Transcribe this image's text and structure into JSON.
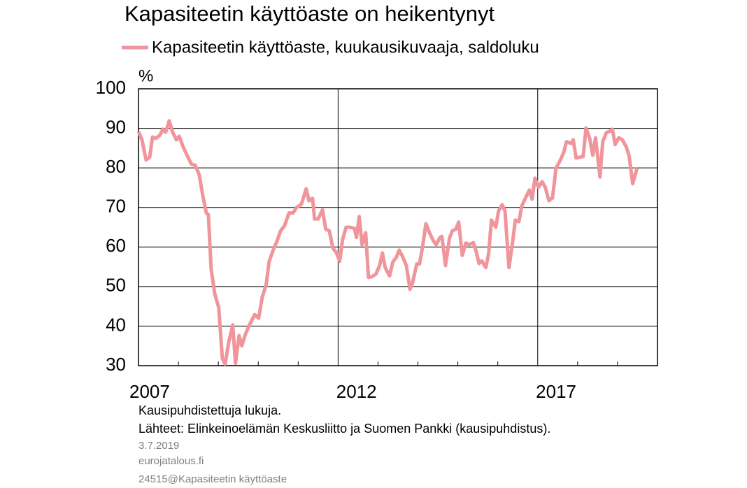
{
  "chart_data": {
    "type": "line",
    "title": "Kapasiteetin käyttöaste on heikentynyt",
    "y_unit": "%",
    "notes": [
      "Kausipuhdistettuja lukuja.",
      "Lähteet: Elinkeinoelämän Keskusliitto ja Suomen Pankki (kausipuhdistus)."
    ],
    "date": "3.7.2019",
    "site": "eurojatalous.fi",
    "chart_id": "24515@Kapasiteetin käyttöaste",
    "xlim": [
      2007,
      2020
    ],
    "xticks": [
      2007,
      2012,
      2017
    ],
    "x_minor_ticks": [
      2008,
      2009,
      2010,
      2011,
      2013,
      2014,
      2015,
      2016,
      2018,
      2019
    ],
    "ylim": [
      30,
      100
    ],
    "yticks": [
      30,
      40,
      50,
      60,
      70,
      80,
      90,
      100
    ],
    "grid": true,
    "x": [
      2007.0,
      2007.09,
      2007.19,
      2007.28,
      2007.35,
      2007.44,
      2007.54,
      2007.61,
      2007.68,
      2007.77,
      2007.86,
      2007.95,
      2008.02,
      2008.12,
      2008.23,
      2008.33,
      2008.42,
      2008.52,
      2008.61,
      2008.7,
      2008.75,
      2008.82,
      2008.91,
      2009.01,
      2009.1,
      2009.17,
      2009.26,
      2009.36,
      2009.43,
      2009.52,
      2009.59,
      2009.68,
      2009.77,
      2009.91,
      2010.01,
      2010.1,
      2010.2,
      2010.27,
      2010.38,
      2010.47,
      2010.56,
      2010.66,
      2010.77,
      2010.87,
      2010.96,
      2011.08,
      2011.2,
      2011.27,
      2011.36,
      2011.41,
      2011.5,
      2011.61,
      2011.69,
      2011.78,
      2011.87,
      2011.96,
      2012.04,
      2012.11,
      2012.2,
      2012.29,
      2012.41,
      2012.46,
      2012.53,
      2012.6,
      2012.69,
      2012.76,
      2012.85,
      2012.95,
      2013.04,
      2013.11,
      2013.18,
      2013.29,
      2013.37,
      2013.46,
      2013.53,
      2013.6,
      2013.71,
      2013.8,
      2013.87,
      2013.97,
      2014.04,
      2014.11,
      2014.2,
      2014.29,
      2014.39,
      2014.46,
      2014.55,
      2014.6,
      2014.69,
      2014.79,
      2014.86,
      2014.95,
      2015.02,
      2015.11,
      2015.2,
      2015.28,
      2015.39,
      2015.46,
      2015.53,
      2015.6,
      2015.7,
      2015.77,
      2015.84,
      2015.95,
      2016.02,
      2016.11,
      2016.18,
      2016.28,
      2016.35,
      2016.44,
      2016.53,
      2016.6,
      2016.68,
      2016.79,
      2016.86,
      2016.93,
      2017.02,
      2017.11,
      2017.19,
      2017.28,
      2017.37,
      2017.46,
      2017.56,
      2017.65,
      2017.72,
      2017.84,
      2017.89,
      2017.96,
      2018.05,
      2018.14,
      2018.21,
      2018.3,
      2018.38,
      2018.45,
      2018.56,
      2018.63,
      2018.72,
      2018.79,
      2018.87,
      2018.94,
      2019.03,
      2019.12,
      2019.22,
      2019.29,
      2019.38,
      2019.49
    ],
    "series": [
      {
        "name": "Kapasiteetin käyttöaste, kuukausikuvaaja, saldoluku",
        "color": "#f0959b",
        "values": [
          89.2,
          87,
          82,
          82.7,
          87.8,
          87.5,
          88.3,
          89.8,
          89,
          91.9,
          88.9,
          87.1,
          88,
          85.3,
          82.9,
          80.9,
          80.7,
          78.3,
          73,
          68.6,
          68.2,
          54.4,
          48.2,
          44.7,
          31.8,
          30.4,
          35.9,
          40.3,
          30.6,
          37.6,
          35,
          38,
          40.1,
          42.9,
          42,
          47.3,
          50.5,
          56.2,
          59.4,
          61.5,
          64.1,
          65.4,
          68.6,
          68.6,
          70,
          70.8,
          74.7,
          71.7,
          72.3,
          67.1,
          67.1,
          69.4,
          64.5,
          64.1,
          59.7,
          58.5,
          56.4,
          61.8,
          65,
          65,
          64.7,
          62.4,
          67.7,
          60.6,
          63.6,
          52.3,
          52.5,
          53.2,
          55.3,
          58.5,
          54.8,
          52.7,
          56.2,
          57.4,
          59.2,
          57.9,
          55.3,
          49.3,
          51.1,
          55.7,
          55.7,
          59.7,
          65.9,
          63.6,
          61.5,
          60.6,
          62.4,
          62.7,
          55.3,
          62.2,
          64.1,
          64.5,
          66.3,
          57.9,
          61,
          60.6,
          61.1,
          58.8,
          55.8,
          56.5,
          54.8,
          58.3,
          66.8,
          65,
          69.1,
          70.7,
          69.1,
          54.8,
          59.7,
          66.8,
          66.4,
          70.3,
          72.1,
          74.4,
          72.1,
          77.4,
          75.1,
          76.5,
          75.1,
          71.7,
          72.4,
          80,
          81.8,
          83.9,
          86.6,
          86.2,
          87.1,
          82.5,
          82.7,
          82.9,
          90.1,
          87.5,
          83.2,
          87.6,
          77.7,
          86.7,
          88.9,
          89.2,
          89.8,
          85.9,
          87.6,
          87.1,
          85.3,
          83,
          76,
          80
        ]
      }
    ]
  }
}
